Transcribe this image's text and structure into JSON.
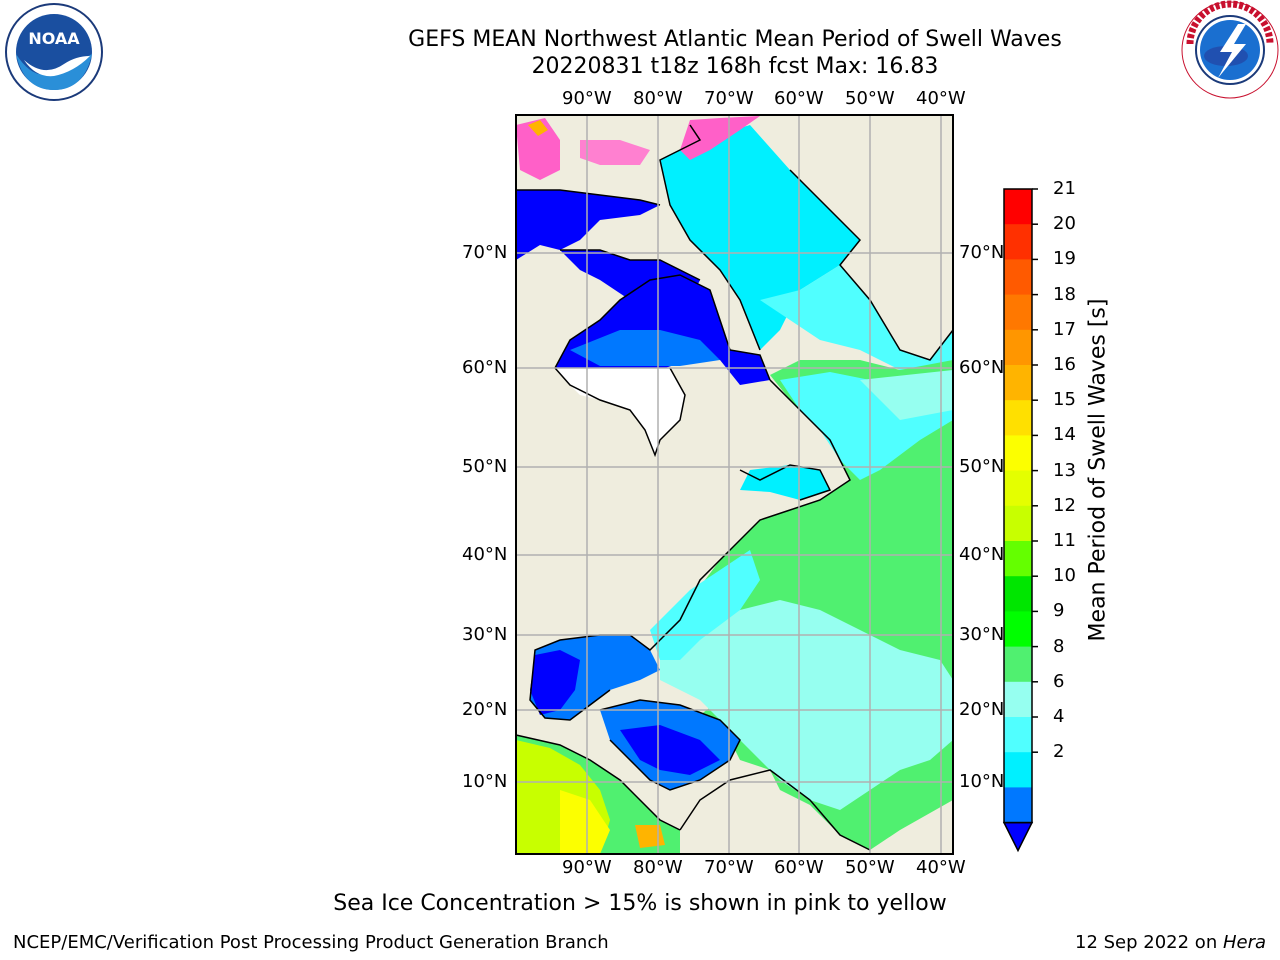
{
  "header": {
    "title_line1": "GEFS MEAN Northwest Atlantic Mean Period of Swell Waves",
    "title_line2": "20220831 t18z 168h fcst   Max: 16.83"
  },
  "logos": {
    "left": "NOAA",
    "left_ring_text": "NATIONAL OCEANIC AND ATMOSPHERIC ADMINISTRATION · U.S. DEPARTMENT OF COMMERCE",
    "right_ring_text": "NATIONAL WEATHER SERVICE"
  },
  "map": {
    "lon_labels": [
      "90°W",
      "80°W",
      "70°W",
      "60°W",
      "50°W",
      "40°W"
    ],
    "lat_labels": [
      "70°N",
      "60°N",
      "50°N",
      "40°N",
      "30°N",
      "20°N",
      "10°N"
    ],
    "colors": {
      "land": "#efedde",
      "missing": "#ffffff",
      "grid": "#b0b0b0",
      "coast": "#000000"
    }
  },
  "colorbar": {
    "title": "Mean Period of Swell Waves [s]",
    "labels": [
      "21",
      "20",
      "19",
      "18",
      "17",
      "16",
      "15",
      "14",
      "13",
      "12",
      "11",
      "10",
      "9",
      "8",
      "6",
      "4",
      "2"
    ],
    "colors": [
      "#ff0000",
      "#ff3000",
      "#ff5a00",
      "#ff7800",
      "#ff9600",
      "#ffb400",
      "#ffe000",
      "#fcff00",
      "#e4ff00",
      "#c8ff00",
      "#64ff00",
      "#00e600",
      "#00ff00",
      "#50f070",
      "#96fff0",
      "#50ffff",
      "#00f0ff",
      "#0078ff"
    ],
    "under_color": "#0000ff"
  },
  "note": "Sea Ice Concentration > 15% is shown in pink to yellow",
  "footer": {
    "left": "NCEP/EMC/Verification Post Processing Product Generation Branch",
    "date": "12 Sep 2022 on ",
    "machine": "Hera"
  }
}
